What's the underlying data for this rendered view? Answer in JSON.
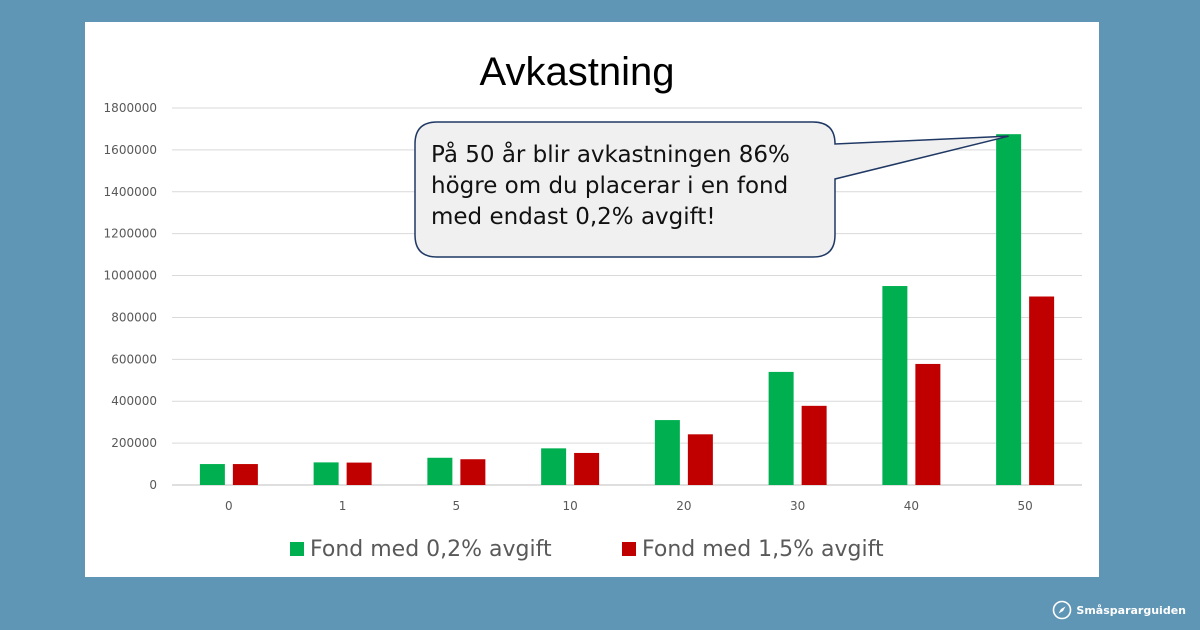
{
  "chart_data": {
    "type": "bar",
    "title": "Avkastning",
    "categories": [
      "0",
      "1",
      "5",
      "10",
      "20",
      "30",
      "40",
      "50"
    ],
    "series": [
      {
        "name": "Fond med 0,2% avgift",
        "color": "#00b050",
        "values": [
          100000,
          108000,
          130000,
          175000,
          310000,
          540000,
          950000,
          1675000
        ]
      },
      {
        "name": "Fond med 1,5% avgift",
        "color": "#c00000",
        "values": [
          100000,
          107000,
          123000,
          153000,
          242000,
          378000,
          578000,
          900000
        ]
      }
    ],
    "yticks": [
      0,
      200000,
      400000,
      600000,
      800000,
      1000000,
      1200000,
      1400000,
      1600000,
      1800000
    ],
    "ylim": [
      0,
      1800000
    ],
    "grid": true,
    "legend_position": "bottom",
    "annotation": {
      "lines": [
        "På 50 år blir avkastningen 86%",
        "högre om du placerar i en fond",
        "med endast 0,2% avgift!"
      ],
      "points_to_category": "50"
    }
  },
  "brand": {
    "name": "Småspararguiden",
    "icon": "compass-icon"
  }
}
